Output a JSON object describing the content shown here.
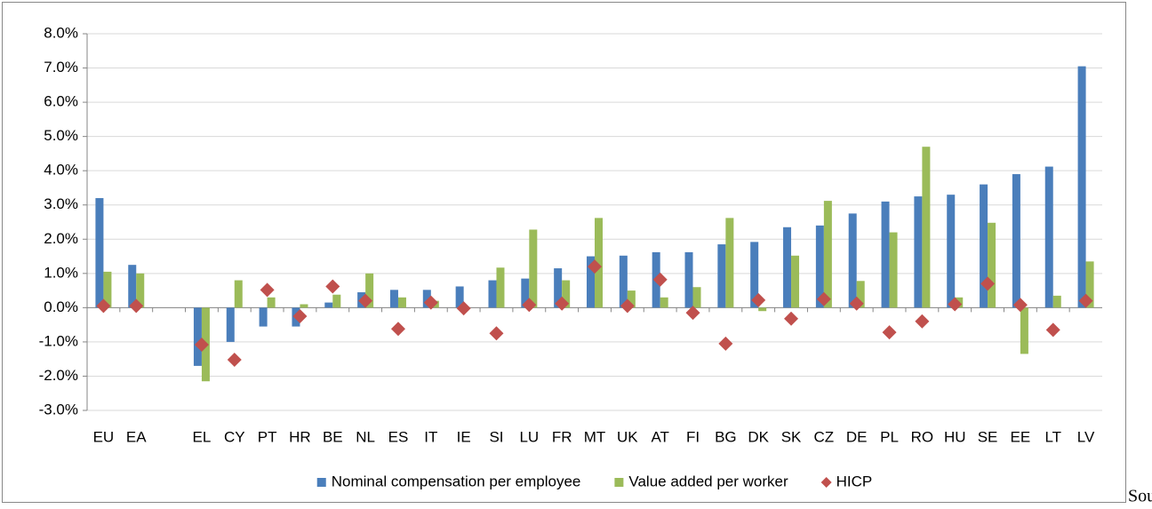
{
  "chart_data": {
    "type": "bar",
    "categories": [
      "EU",
      "EA",
      null,
      "EL",
      "CY",
      "PT",
      "HR",
      "BE",
      "NL",
      "ES",
      "IT",
      "IE",
      "SI",
      "LU",
      "FR",
      "MT",
      "UK",
      "AT",
      "FI",
      "BG",
      "DK",
      "SK",
      "CZ",
      "DE",
      "PL",
      "RO",
      "HU",
      "SE",
      "EE",
      "LT",
      "LV"
    ],
    "series": [
      {
        "name": "Nominal compensation per employee",
        "type": "bar",
        "color": "#4a7ebb",
        "values": [
          3.2,
          1.25,
          null,
          -1.7,
          -1.0,
          -0.55,
          -0.55,
          0.15,
          0.45,
          0.52,
          0.52,
          0.62,
          0.8,
          0.85,
          1.15,
          1.5,
          1.52,
          1.62,
          1.62,
          1.85,
          1.92,
          2.35,
          2.4,
          2.75,
          3.1,
          3.25,
          3.3,
          3.6,
          3.9,
          4.12,
          7.05
        ]
      },
      {
        "name": "Value added per worker",
        "type": "bar",
        "color": "#9bbb59",
        "values": [
          1.05,
          1.0,
          null,
          -2.15,
          0.8,
          0.3,
          0.1,
          0.38,
          1.0,
          0.3,
          0.2,
          0.0,
          1.17,
          2.28,
          0.8,
          2.62,
          0.5,
          0.3,
          0.6,
          2.62,
          -0.1,
          1.52,
          3.12,
          0.78,
          2.2,
          4.7,
          0.3,
          2.48,
          -1.35,
          0.35,
          1.35
        ]
      },
      {
        "name": "HICP",
        "type": "scatter",
        "color": "#c0504d",
        "values": [
          0.05,
          0.05,
          null,
          -1.08,
          -1.52,
          0.52,
          -0.25,
          0.62,
          0.2,
          -0.62,
          0.15,
          -0.02,
          -0.75,
          0.08,
          0.12,
          1.2,
          0.05,
          0.82,
          -0.15,
          -1.05,
          0.22,
          -0.32,
          0.25,
          0.12,
          -0.72,
          -0.4,
          0.1,
          0.7,
          0.08,
          -0.65,
          0.2
        ]
      }
    ],
    "ylim": [
      -3,
      8
    ],
    "yticks": [
      {
        "value": -3,
        "label": "-3.0%"
      },
      {
        "value": -2,
        "label": "-2.0%"
      },
      {
        "value": -1,
        "label": "-1.0%"
      },
      {
        "value": 0,
        "label": "0.0%"
      },
      {
        "value": 1,
        "label": "1.0%"
      },
      {
        "value": 2,
        "label": "2.0%"
      },
      {
        "value": 3,
        "label": "3.0%"
      },
      {
        "value": 4,
        "label": "4.0%"
      },
      {
        "value": 5,
        "label": "5.0%"
      },
      {
        "value": 6,
        "label": "6.0%"
      },
      {
        "value": 7,
        "label": "7.0%"
      },
      {
        "value": 8,
        "label": "8.0%"
      }
    ],
    "grid": true,
    "legend": "bottom"
  },
  "trailing_text": "Sour"
}
